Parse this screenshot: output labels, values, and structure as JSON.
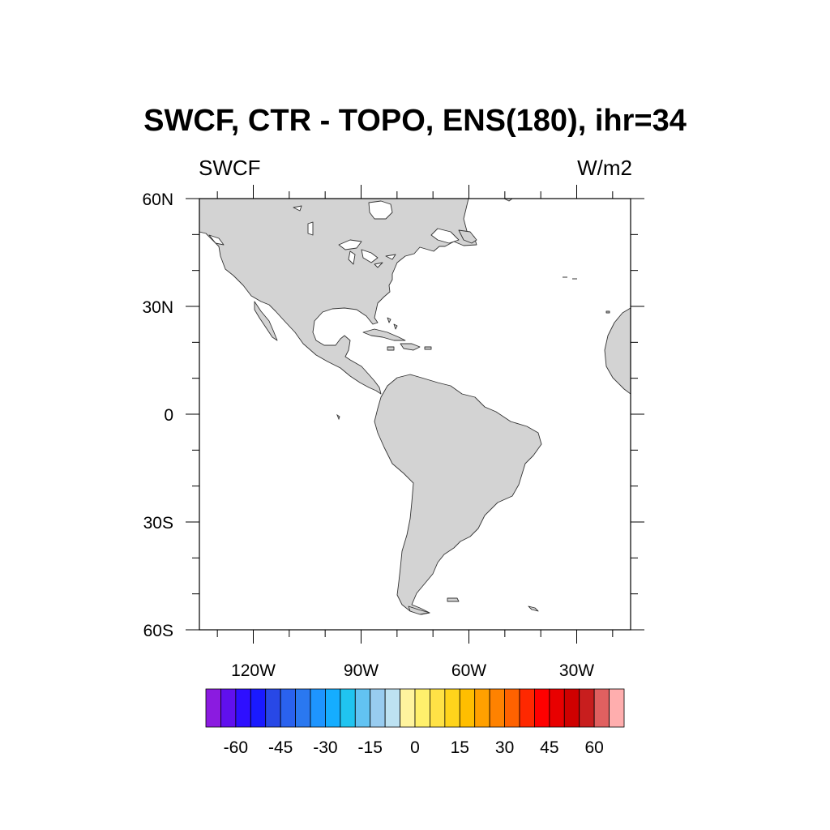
{
  "title": "SWCF, CTR - TOPO, ENS(180), ihr=34",
  "subtitle_left": "SWCF",
  "subtitle_right": "W/m2",
  "map": {
    "lon_range": [
      -135,
      -15
    ],
    "lat_range": [
      -60,
      60
    ],
    "lat_labels": [
      {
        "lat": 60,
        "label": "60N"
      },
      {
        "lat": 30,
        "label": "30N"
      },
      {
        "lat": 0,
        "label": "0"
      },
      {
        "lat": -30,
        "label": "30S"
      },
      {
        "lat": -60,
        "label": "60S"
      }
    ],
    "lon_labels": [
      {
        "lon": -120,
        "label": "120W"
      },
      {
        "lon": -90,
        "label": "90W"
      },
      {
        "lon": -60,
        "label": "60W"
      },
      {
        "lon": -30,
        "label": "30W"
      }
    ],
    "land_color": "#d3d3d3",
    "ocean_color": "#ffffff"
  },
  "colorbar": {
    "colors": [
      "#8b1be0",
      "#6010ee",
      "#2e0fff",
      "#1a1aff",
      "#2848e6",
      "#2a62ee",
      "#2a78f0",
      "#1e95ff",
      "#15adff",
      "#20c4f0",
      "#62c3f2",
      "#98ccf0",
      "#bde2f2",
      "#fff49e",
      "#fff06c",
      "#ffe246",
      "#ffd41c",
      "#ffbe00",
      "#ffa000",
      "#ff8200",
      "#ff6200",
      "#ff2800",
      "#ff0000",
      "#e80000",
      "#cf0000",
      "#c81e1e",
      "#e06060",
      "#ffaeae"
    ],
    "tick_labels": [
      "-60",
      "-45",
      "-30",
      "-15",
      "0",
      "15",
      "30",
      "45",
      "60"
    ],
    "tick_boundary_index": [
      2,
      5,
      8,
      11,
      14,
      17,
      20,
      23,
      26
    ]
  }
}
